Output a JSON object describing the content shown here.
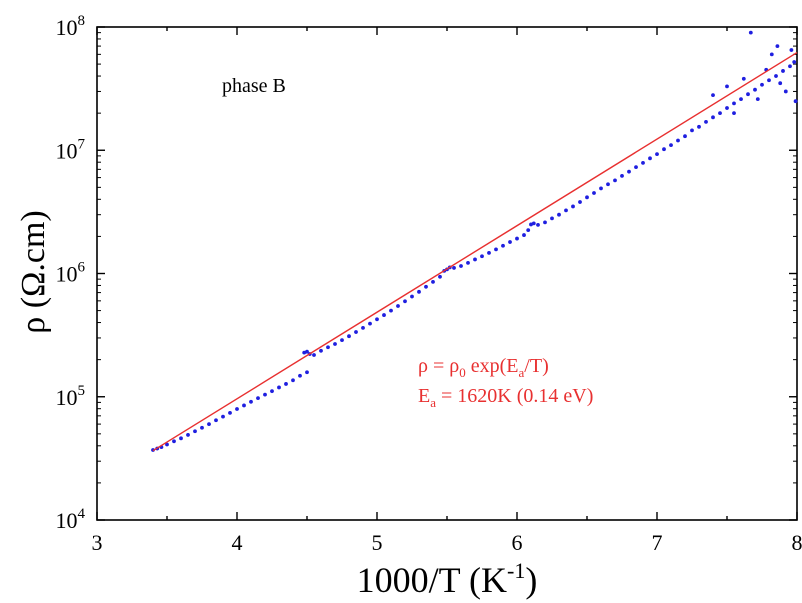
{
  "chart_data": {
    "type": "scatter",
    "annotation": "phase B",
    "xlabel": {
      "base": "1000/T (K",
      "sup": "-1",
      "end": ")"
    },
    "ylabel": "ρ (Ω.cm)",
    "xlim": [
      3,
      8
    ],
    "ylim": [
      10000,
      100000000
    ],
    "yscale": "log",
    "xticks": [
      "3",
      "4",
      "5",
      "6",
      "7",
      "8"
    ],
    "yticks": [
      {
        "base": "10",
        "exp": "4"
      },
      {
        "base": "10",
        "exp": "5"
      },
      {
        "base": "10",
        "exp": "6"
      },
      {
        "base": "10",
        "exp": "7"
      },
      {
        "base": "10",
        "exp": "8"
      }
    ],
    "grid": false,
    "series": [
      {
        "kind": "scatter",
        "color": "#1f1fe0",
        "points": [
          [
            3.4,
            37000
          ],
          [
            3.43,
            38000
          ],
          [
            3.46,
            39000
          ],
          [
            3.5,
            41000
          ],
          [
            3.55,
            43500
          ],
          [
            3.6,
            46000
          ],
          [
            3.65,
            49000
          ],
          [
            3.7,
            52500
          ],
          [
            3.75,
            56000
          ],
          [
            3.8,
            60000
          ],
          [
            3.85,
            64500
          ],
          [
            3.9,
            69000
          ],
          [
            3.95,
            74000
          ],
          [
            4.0,
            79500
          ],
          [
            4.05,
            85000
          ],
          [
            4.1,
            91000
          ],
          [
            4.15,
            97500
          ],
          [
            4.2,
            104000
          ],
          [
            4.25,
            111000
          ],
          [
            4.3,
            119000
          ],
          [
            4.35,
            127000
          ],
          [
            4.4,
            136000
          ],
          [
            4.45,
            148000
          ],
          [
            4.5,
            158000
          ],
          [
            4.48,
            228000
          ],
          [
            4.5,
            232000
          ],
          [
            4.52,
            222000
          ],
          [
            4.55,
            218000
          ],
          [
            4.6,
            236000
          ],
          [
            4.65,
            252000
          ],
          [
            4.7,
            268000
          ],
          [
            4.75,
            288000
          ],
          [
            4.8,
            310000
          ],
          [
            4.85,
            335000
          ],
          [
            4.9,
            362000
          ],
          [
            4.95,
            392000
          ],
          [
            5.0,
            425000
          ],
          [
            5.05,
            460000
          ],
          [
            5.1,
            500000
          ],
          [
            5.15,
            545000
          ],
          [
            5.2,
            595000
          ],
          [
            5.25,
            650000
          ],
          [
            5.3,
            710000
          ],
          [
            5.35,
            780000
          ],
          [
            5.4,
            855000
          ],
          [
            5.45,
            940000
          ],
          [
            5.48,
            1050000
          ],
          [
            5.5,
            1080000
          ],
          [
            5.52,
            1120000
          ],
          [
            5.55,
            1110000
          ],
          [
            5.6,
            1150000
          ],
          [
            5.65,
            1220000
          ],
          [
            5.7,
            1300000
          ],
          [
            5.75,
            1380000
          ],
          [
            5.8,
            1470000
          ],
          [
            5.85,
            1570000
          ],
          [
            5.9,
            1680000
          ],
          [
            5.95,
            1800000
          ],
          [
            6.0,
            1920000
          ],
          [
            6.05,
            2050000
          ],
          [
            6.08,
            2250000
          ],
          [
            6.1,
            2500000
          ],
          [
            6.12,
            2550000
          ],
          [
            6.15,
            2480000
          ],
          [
            6.2,
            2600000
          ],
          [
            6.25,
            2800000
          ],
          [
            6.3,
            3000000
          ],
          [
            6.35,
            3250000
          ],
          [
            6.4,
            3500000
          ],
          [
            6.45,
            3800000
          ],
          [
            6.5,
            4150000
          ],
          [
            6.55,
            4500000
          ],
          [
            6.6,
            4900000
          ],
          [
            6.65,
            5300000
          ],
          [
            6.7,
            5700000
          ],
          [
            6.75,
            6200000
          ],
          [
            6.8,
            6700000
          ],
          [
            6.85,
            7300000
          ],
          [
            6.9,
            7900000
          ],
          [
            6.95,
            8600000
          ],
          [
            7.0,
            9300000
          ],
          [
            7.05,
            10200000
          ],
          [
            7.1,
            11000000
          ],
          [
            7.15,
            12000000
          ],
          [
            7.2,
            13000000
          ],
          [
            7.25,
            14500000
          ],
          [
            7.3,
            15500000
          ],
          [
            7.35,
            17000000
          ],
          [
            7.4,
            18500000
          ],
          [
            7.45,
            20000000
          ],
          [
            7.5,
            22000000
          ],
          [
            7.55,
            24000000
          ],
          [
            7.6,
            26000000
          ],
          [
            7.65,
            28500000
          ],
          [
            7.7,
            31000000
          ],
          [
            7.75,
            34000000
          ],
          [
            7.8,
            37000000
          ],
          [
            7.85,
            40000000
          ],
          [
            7.9,
            44000000
          ],
          [
            7.95,
            48000000
          ],
          [
            7.98,
            52000000
          ],
          [
            7.4,
            28000000
          ],
          [
            7.5,
            33000000
          ],
          [
            7.55,
            20000000
          ],
          [
            7.62,
            38000000
          ],
          [
            7.67,
            90000000
          ],
          [
            7.72,
            26000000
          ],
          [
            7.78,
            45000000
          ],
          [
            7.82,
            60000000
          ],
          [
            7.86,
            70000000
          ],
          [
            7.88,
            35000000
          ],
          [
            7.92,
            30000000
          ],
          [
            7.96,
            65000000
          ],
          [
            7.99,
            25000000
          ]
        ]
      },
      {
        "kind": "line",
        "color": "#e83030",
        "points": [
          [
            3.4,
            36500
          ],
          [
            8.0,
            62000000
          ]
        ]
      }
    ],
    "equation": {
      "line1": "ρ = ρ",
      "sub1": "0",
      "line1b": " exp(E",
      "sub1b": "a",
      "line1c": "/T)"
    },
    "fit_label": {
      "base": "E",
      "sub": "a",
      "rest": " = 1620K (0.14 eV)"
    }
  }
}
